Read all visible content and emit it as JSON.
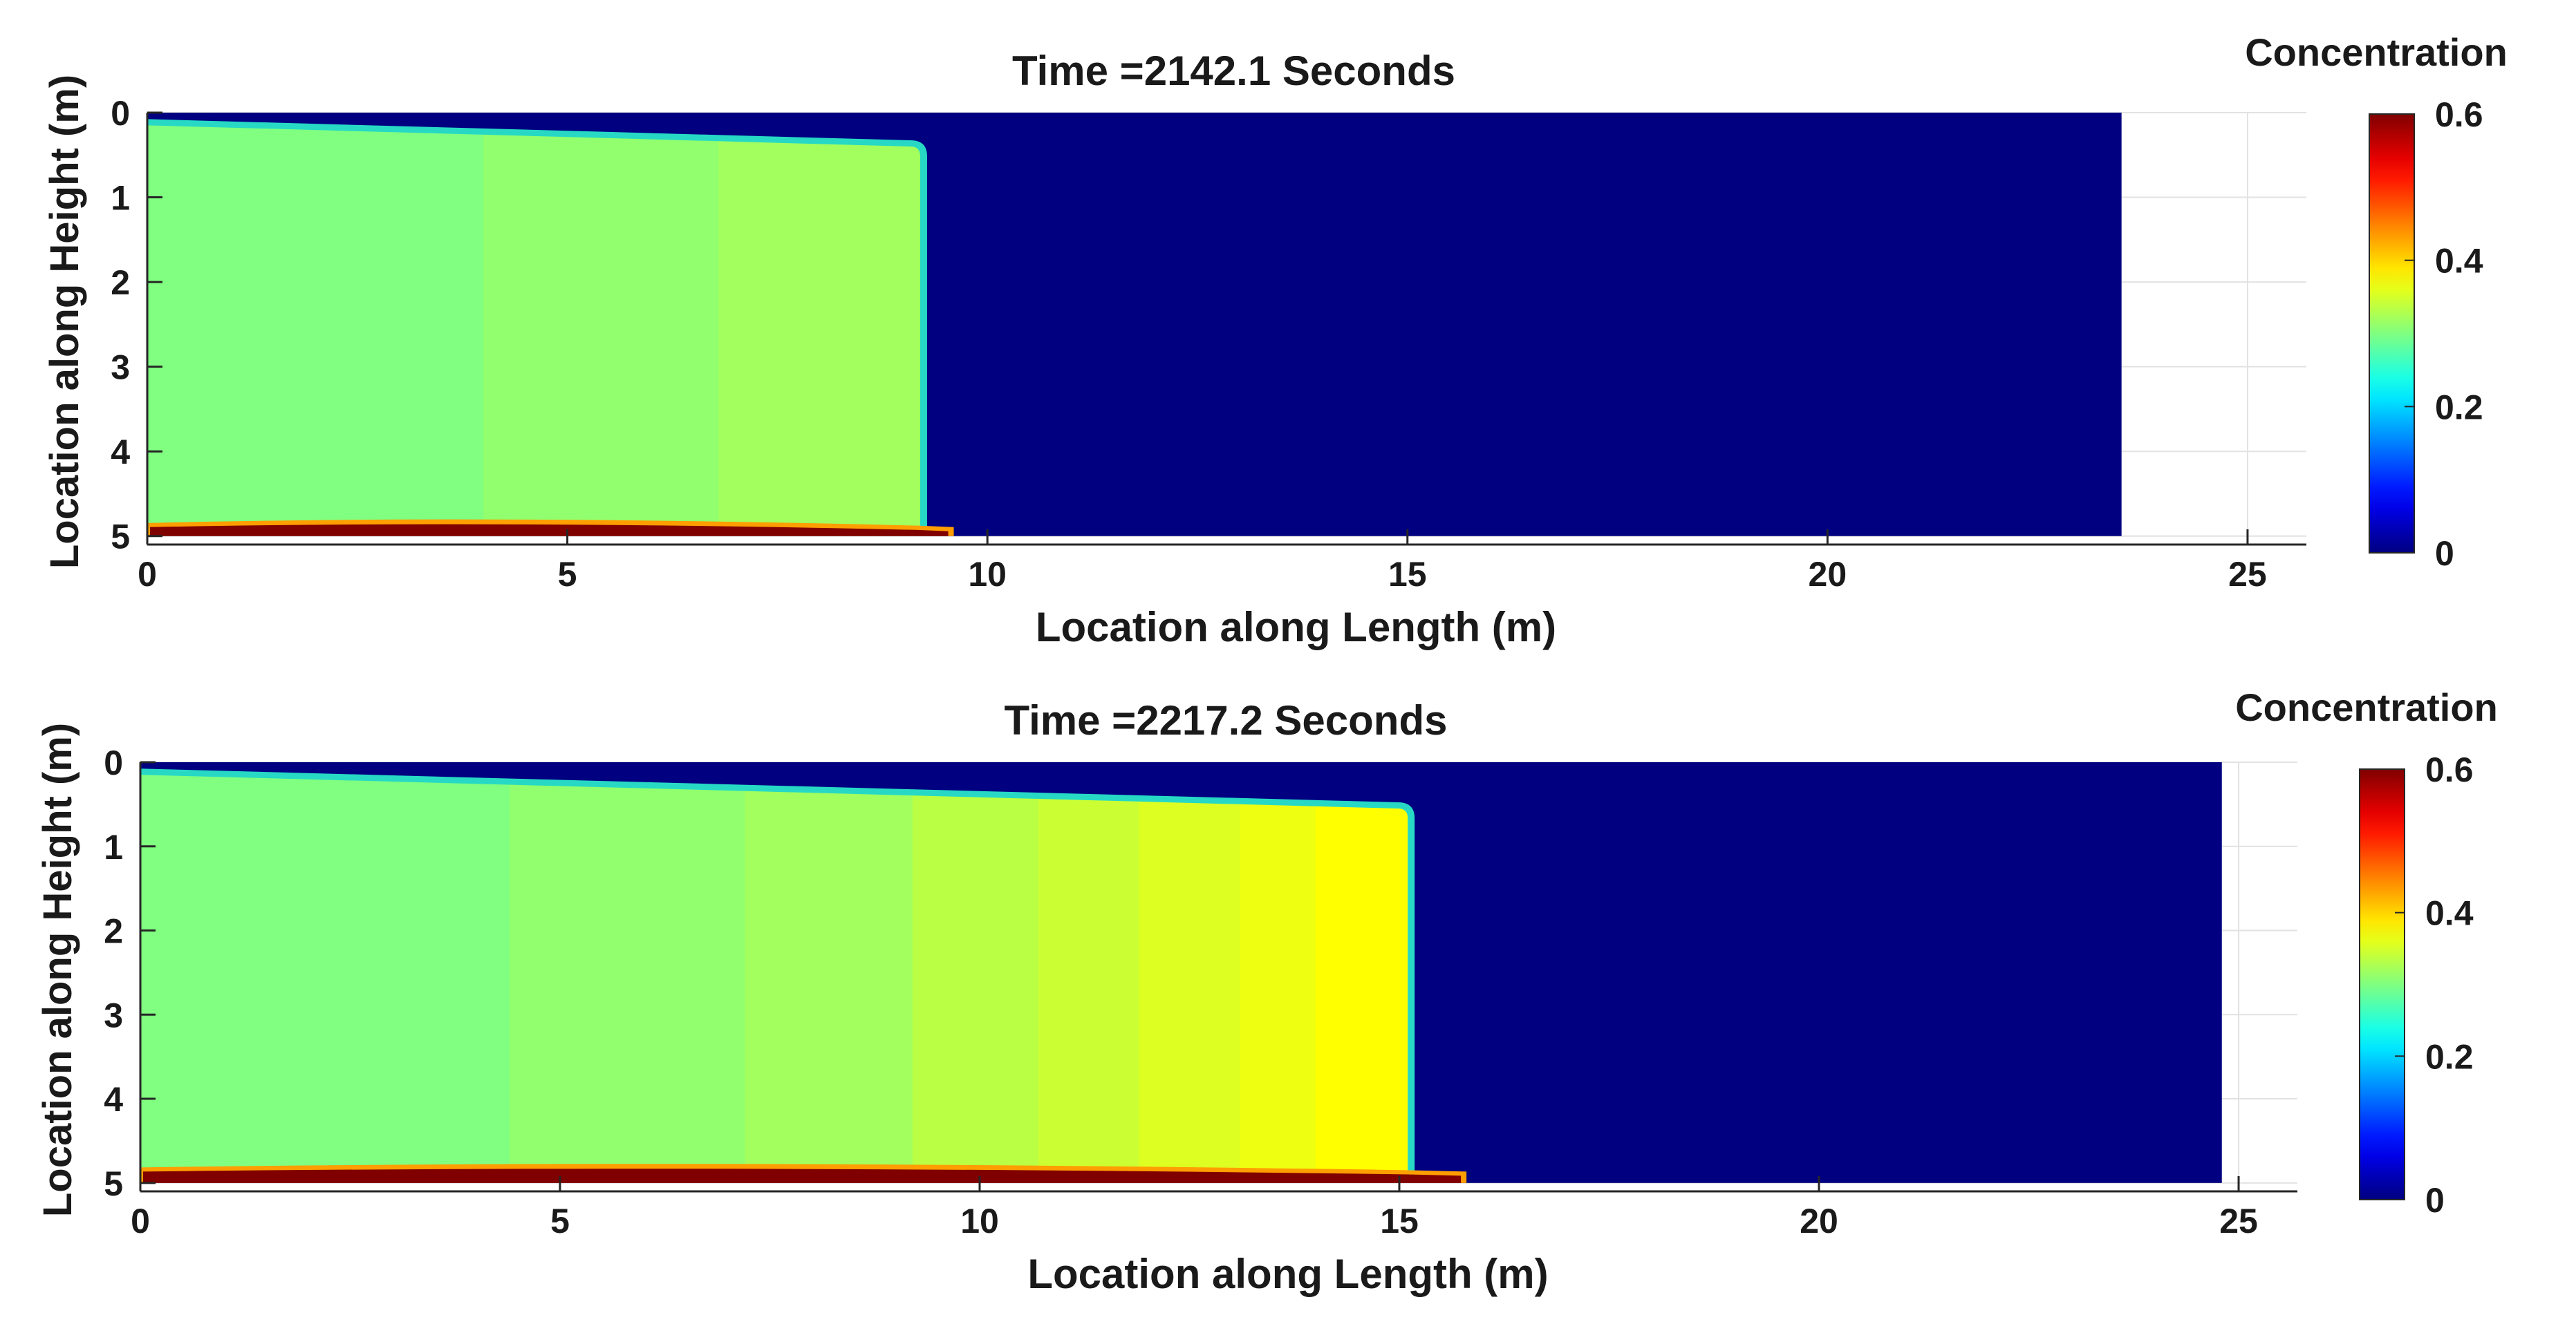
{
  "chart_data": [
    {
      "type": "heatmap",
      "title": "Time =2142.1 Seconds",
      "xlabel": "Location along Length (m)",
      "ylabel": "Location along Height (m)",
      "xlim": [
        0,
        25.7
      ],
      "ylim": [
        0,
        5.1
      ],
      "y_axis_direction": "down",
      "xticks": [
        0,
        5,
        10,
        15,
        20,
        25
      ],
      "yticks": [
        0,
        1,
        2,
        3,
        4,
        5
      ],
      "grid": true,
      "domain_length": 23.5,
      "domain_height": 5,
      "background_concentration": 0,
      "current": {
        "front_position": 9.2,
        "top_at_origin": 0.15,
        "top_at_front": 0.4,
        "bands": [
          {
            "x_start": 0,
            "x_end": 4.0,
            "concentration": 0.3
          },
          {
            "x_start": 4.0,
            "x_end": 6.8,
            "concentration": 0.31
          },
          {
            "x_start": 6.8,
            "x_end": 9.2,
            "concentration": 0.32
          }
        ],
        "bed_layer": {
          "x_end": 9.6,
          "thickness": 0.22,
          "concentration": 0.6
        }
      },
      "colorbar": {
        "label": "Concentration",
        "min": 0,
        "max": 0.6,
        "ticks": [
          0,
          0.2,
          0.4,
          0.6
        ],
        "colormap": "jet"
      }
    },
    {
      "type": "heatmap",
      "title": "Time =2217.2 Seconds",
      "xlabel": "Location along Length (m)",
      "ylabel": "Location along Height (m)",
      "xlim": [
        0,
        25.7
      ],
      "ylim": [
        0,
        5.1
      ],
      "y_axis_direction": "down",
      "xticks": [
        0,
        5,
        10,
        15,
        20,
        25
      ],
      "yticks": [
        0,
        1,
        2,
        3,
        4,
        5
      ],
      "grid": true,
      "domain_length": 24.8,
      "domain_height": 5,
      "background_concentration": 0,
      "current": {
        "front_position": 15.1,
        "top_at_origin": 0.15,
        "top_at_front": 0.55,
        "bands": [
          {
            "x_start": 0,
            "x_end": 4.4,
            "concentration": 0.3
          },
          {
            "x_start": 4.4,
            "x_end": 7.2,
            "concentration": 0.31
          },
          {
            "x_start": 7.2,
            "x_end": 9.2,
            "concentration": 0.32
          },
          {
            "x_start": 9.2,
            "x_end": 10.7,
            "concentration": 0.335
          },
          {
            "x_start": 10.7,
            "x_end": 11.9,
            "concentration": 0.345
          },
          {
            "x_start": 11.9,
            "x_end": 13.1,
            "concentration": 0.355
          },
          {
            "x_start": 13.1,
            "x_end": 14.0,
            "concentration": 0.365
          },
          {
            "x_start": 14.0,
            "x_end": 15.1,
            "concentration": 0.375
          }
        ],
        "bed_layer": {
          "x_end": 15.8,
          "thickness": 0.25,
          "concentration": 0.6
        }
      },
      "colorbar": {
        "label": "Concentration",
        "min": 0,
        "max": 0.6,
        "ticks": [
          0,
          0.2,
          0.4,
          0.6
        ],
        "colormap": "jet"
      }
    }
  ]
}
